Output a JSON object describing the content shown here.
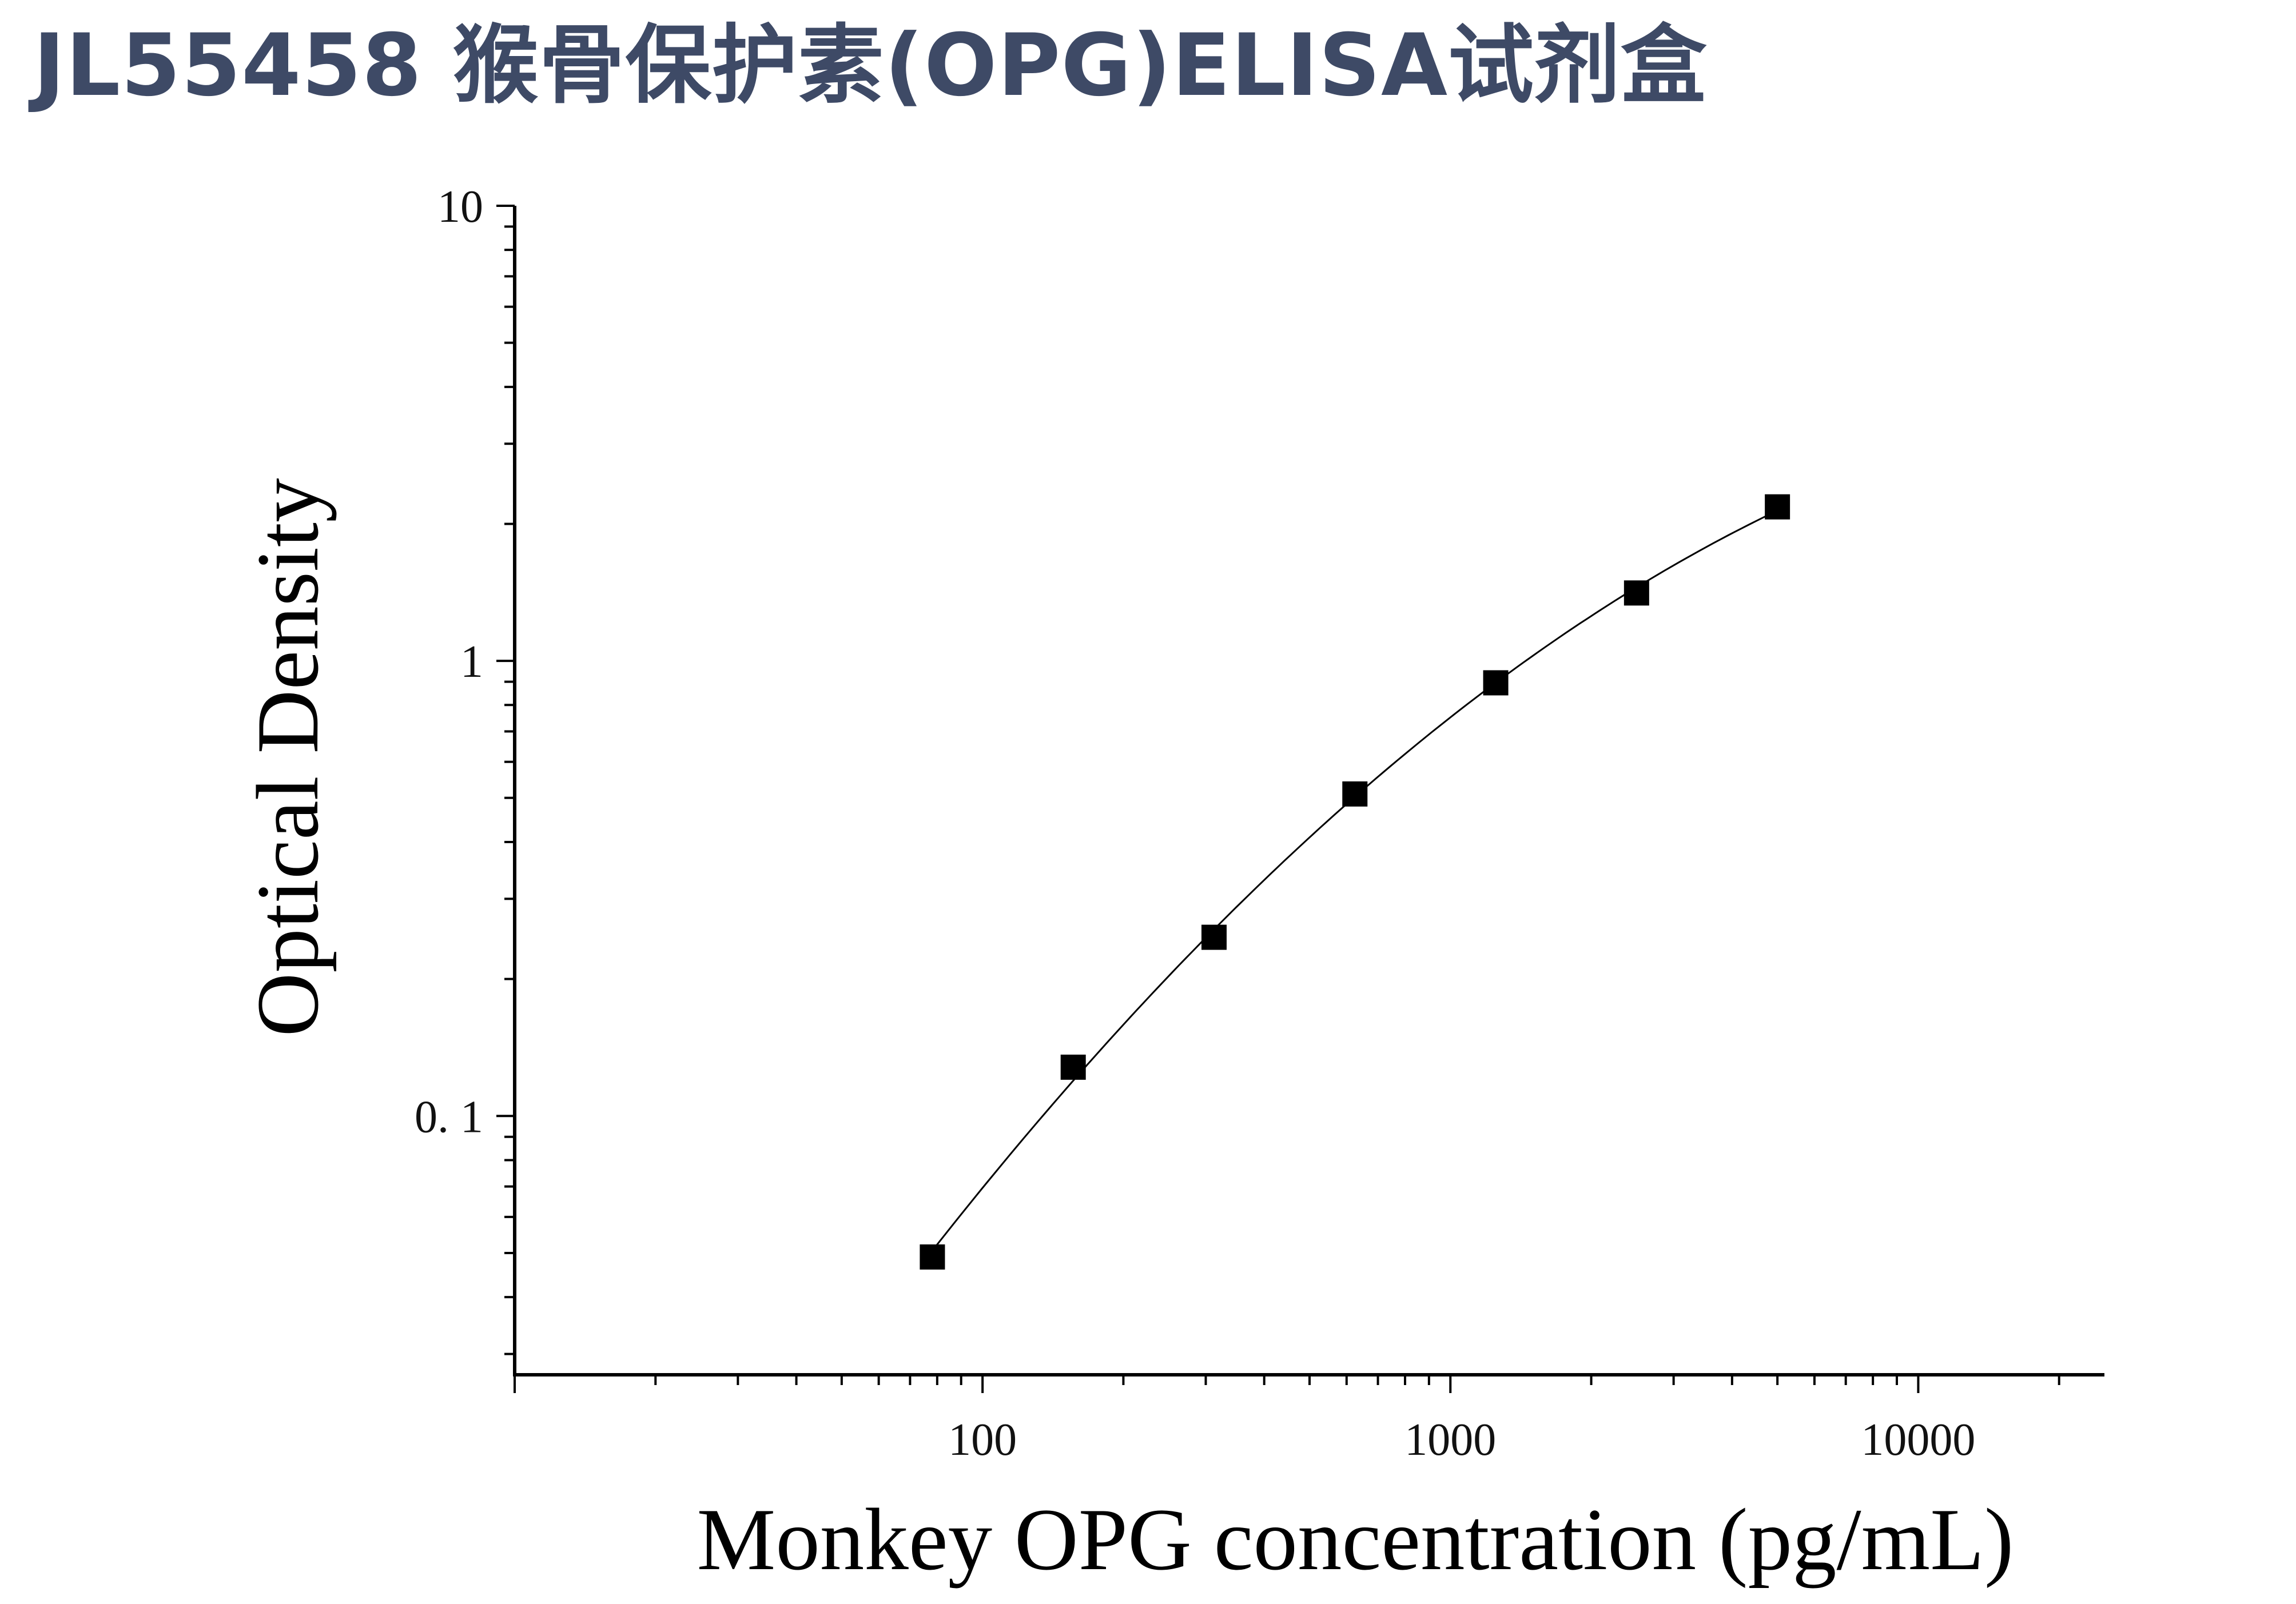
{
  "title": "JL55458 猴骨保护素(OPG)ELISA试剂盒",
  "chart_data": {
    "type": "scatter",
    "title": "JL55458 猴骨保护素(OPG)ELISA试剂盒",
    "xlabel": "Monkey OPG concentration (pg/mL)",
    "ylabel": "Optical Density",
    "x_scale": "log",
    "y_scale": "log",
    "xlim": [
      10,
      25000
    ],
    "ylim": [
      0.027,
      10
    ],
    "x_ticks": [
      100,
      1000,
      10000
    ],
    "x_tick_labels": [
      "100",
      "1000",
      "10000"
    ],
    "y_ticks": [
      0.1,
      1,
      10
    ],
    "y_tick_labels": [
      "0. 1",
      "1",
      "10"
    ],
    "grid": false,
    "legend": "none",
    "marker": "square",
    "marker_color": "#000000",
    "line_color": "#000000",
    "series": [
      {
        "x": [
          78.125,
          156.25,
          312.5,
          625,
          1250,
          2500,
          5000
        ],
        "y": [
          0.049,
          0.128,
          0.247,
          0.51,
          0.895,
          1.41,
          2.18
        ]
      }
    ],
    "fit_curve": true
  }
}
